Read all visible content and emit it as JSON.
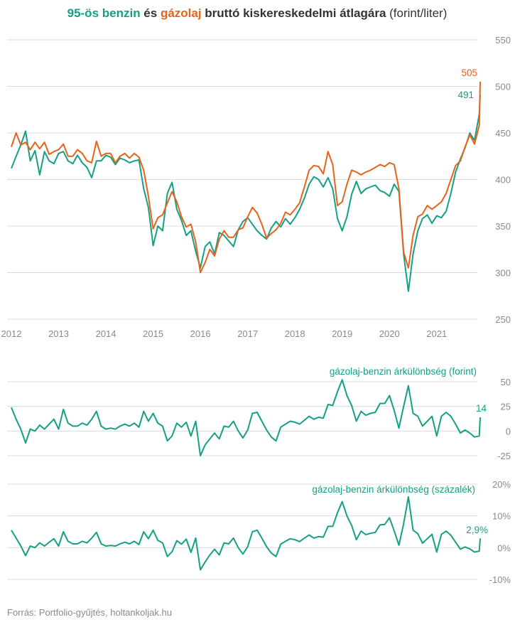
{
  "title": {
    "part1": "95-ös benzin",
    "part2": " és ",
    "part3": "gázolaj",
    "part4": " bruttó kiskereskedelmi átlagára",
    "part5": " (forint/liter)"
  },
  "source": "Forrás: Portfolio-gyűjtés, holtankoljak.hu",
  "colors": {
    "benzin": "#13a085",
    "gazolaj": "#e8621a",
    "grid": "#dcdcdc",
    "text": "#333333",
    "tick": "#8a8a8a"
  },
  "chart_data": [
    {
      "type": "line",
      "title": "95-ös benzin és gázolaj bruttó kiskereskedelmi átlagára (forint/liter)",
      "x_ticks": [
        "2012",
        "2013",
        "2014",
        "2015",
        "2016",
        "2017",
        "2018",
        "2019",
        "2020",
        "2021"
      ],
      "y_ticks": [
        "550",
        "500",
        "450",
        "400",
        "350",
        "300",
        "250"
      ],
      "ylim": [
        250,
        550
      ],
      "xlim": [
        2012.0,
        2021.92
      ],
      "grid": true,
      "end_labels": {
        "gazolaj": "505",
        "benzin": "491"
      },
      "series": [
        {
          "name": "95-ös benzin",
          "key": "benzin",
          "x": [
            2012.0,
            2012.1,
            2012.2,
            2012.3,
            2012.4,
            2012.5,
            2012.6,
            2012.7,
            2012.8,
            2012.9,
            2013.0,
            2013.1,
            2013.2,
            2013.3,
            2013.4,
            2013.5,
            2013.6,
            2013.7,
            2013.8,
            2013.9,
            2014.0,
            2014.1,
            2014.2,
            2014.3,
            2014.4,
            2014.5,
            2014.6,
            2014.7,
            2014.8,
            2014.9,
            2015.0,
            2015.1,
            2015.2,
            2015.3,
            2015.4,
            2015.5,
            2015.6,
            2015.7,
            2015.8,
            2015.9,
            2016.0,
            2016.1,
            2016.2,
            2016.3,
            2016.4,
            2016.5,
            2016.6,
            2016.7,
            2016.8,
            2016.9,
            2017.0,
            2017.1,
            2017.2,
            2017.3,
            2017.4,
            2017.5,
            2017.6,
            2017.7,
            2017.8,
            2017.9,
            2018.0,
            2018.1,
            2018.2,
            2018.3,
            2018.4,
            2018.5,
            2018.6,
            2018.7,
            2018.8,
            2018.9,
            2019.0,
            2019.1,
            2019.2,
            2019.3,
            2019.4,
            2019.5,
            2019.6,
            2019.7,
            2019.8,
            2019.9,
            2020.0,
            2020.1,
            2020.2,
            2020.3,
            2020.4,
            2020.5,
            2020.6,
            2020.7,
            2020.8,
            2020.9,
            2021.0,
            2021.1,
            2021.2,
            2021.3,
            2021.4,
            2021.5,
            2021.6,
            2021.7,
            2021.8,
            2021.9,
            2021.92
          ],
          "values": [
            412,
            425,
            437,
            452,
            420,
            431,
            405,
            430,
            420,
            417,
            428,
            430,
            420,
            417,
            426,
            418,
            413,
            402,
            420,
            420,
            426,
            424,
            416,
            423,
            421,
            418,
            420,
            421,
            390,
            370,
            329,
            350,
            345,
            385,
            397,
            368,
            356,
            340,
            345,
            323,
            305,
            328,
            333,
            320,
            343,
            340,
            334,
            328,
            346,
            355,
            359,
            352,
            345,
            340,
            336,
            348,
            355,
            349,
            358,
            352,
            359,
            368,
            380,
            395,
            403,
            400,
            392,
            402,
            390,
            358,
            345,
            360,
            384,
            398,
            385,
            390,
            392,
            394,
            388,
            386,
            382,
            395,
            387,
            320,
            280,
            320,
            345,
            358,
            362,
            353,
            361,
            359,
            366,
            385,
            408,
            422,
            434,
            450,
            442,
            470,
            491
          ]
        },
        {
          "name": "gázolaj",
          "key": "gazolaj",
          "x": [
            2012.0,
            2012.1,
            2012.2,
            2012.3,
            2012.4,
            2012.5,
            2012.6,
            2012.7,
            2012.8,
            2012.9,
            2013.0,
            2013.1,
            2013.2,
            2013.3,
            2013.4,
            2013.5,
            2013.6,
            2013.7,
            2013.8,
            2013.9,
            2014.0,
            2014.1,
            2014.2,
            2014.3,
            2014.4,
            2014.5,
            2014.6,
            2014.7,
            2014.8,
            2014.9,
            2015.0,
            2015.1,
            2015.2,
            2015.3,
            2015.4,
            2015.5,
            2015.6,
            2015.7,
            2015.8,
            2015.9,
            2016.0,
            2016.1,
            2016.2,
            2016.3,
            2016.4,
            2016.5,
            2016.6,
            2016.7,
            2016.8,
            2016.9,
            2017.0,
            2017.1,
            2017.2,
            2017.3,
            2017.4,
            2017.5,
            2017.6,
            2017.7,
            2017.8,
            2017.9,
            2018.0,
            2018.1,
            2018.2,
            2018.3,
            2018.4,
            2018.5,
            2018.6,
            2018.7,
            2018.8,
            2018.9,
            2019.0,
            2019.1,
            2019.2,
            2019.3,
            2019.4,
            2019.5,
            2019.6,
            2019.7,
            2019.8,
            2019.9,
            2020.0,
            2020.1,
            2020.2,
            2020.3,
            2020.4,
            2020.5,
            2020.6,
            2020.7,
            2020.8,
            2020.9,
            2021.0,
            2021.1,
            2021.2,
            2021.3,
            2021.4,
            2021.5,
            2021.6,
            2021.7,
            2021.8,
            2021.9,
            2021.92
          ],
          "values": [
            435,
            450,
            437,
            440,
            432,
            440,
            433,
            440,
            427,
            430,
            432,
            438,
            425,
            425,
            432,
            428,
            420,
            418,
            441,
            425,
            428,
            428,
            418,
            425,
            428,
            423,
            428,
            424,
            410,
            382,
            347,
            359,
            362,
            375,
            387,
            376,
            360,
            349,
            352,
            333,
            300,
            311,
            325,
            318,
            336,
            345,
            338,
            338,
            346,
            348,
            360,
            370,
            364,
            352,
            337,
            342,
            346,
            353,
            365,
            362,
            368,
            375,
            392,
            410,
            415,
            414,
            406,
            430,
            416,
            372,
            376,
            395,
            410,
            408,
            405,
            408,
            410,
            413,
            416,
            414,
            418,
            416,
            390,
            322,
            305,
            340,
            360,
            363,
            372,
            368,
            372,
            376,
            385,
            400,
            415,
            420,
            435,
            448,
            438,
            458,
            505
          ]
        }
      ]
    },
    {
      "type": "line",
      "title": "gázolaj-benzin árkülönbség (forint)",
      "y_ticks": [
        "50",
        "25",
        "0",
        "-25"
      ],
      "ylim": [
        -25,
        50
      ],
      "grid": true,
      "end_label": "14",
      "series": [
        {
          "key": "diff_forint",
          "x": [
            2012.0,
            2012.1,
            2012.2,
            2012.3,
            2012.4,
            2012.5,
            2012.6,
            2012.7,
            2012.8,
            2012.9,
            2013.0,
            2013.1,
            2013.2,
            2013.3,
            2013.4,
            2013.5,
            2013.6,
            2013.7,
            2013.8,
            2013.9,
            2014.0,
            2014.1,
            2014.2,
            2014.3,
            2014.4,
            2014.5,
            2014.6,
            2014.7,
            2014.8,
            2014.9,
            2015.0,
            2015.1,
            2015.2,
            2015.3,
            2015.4,
            2015.5,
            2015.6,
            2015.7,
            2015.8,
            2015.9,
            2016.0,
            2016.1,
            2016.2,
            2016.3,
            2016.4,
            2016.5,
            2016.6,
            2016.7,
            2016.8,
            2016.9,
            2017.0,
            2017.1,
            2017.2,
            2017.3,
            2017.4,
            2017.5,
            2017.6,
            2017.7,
            2017.8,
            2017.9,
            2018.0,
            2018.1,
            2018.2,
            2018.3,
            2018.4,
            2018.5,
            2018.6,
            2018.7,
            2018.8,
            2018.9,
            2019.0,
            2019.1,
            2019.2,
            2019.3,
            2019.4,
            2019.5,
            2019.6,
            2019.7,
            2019.8,
            2019.9,
            2020.0,
            2020.1,
            2020.2,
            2020.3,
            2020.4,
            2020.5,
            2020.6,
            2020.7,
            2020.8,
            2020.9,
            2021.0,
            2021.1,
            2021.2,
            2021.3,
            2021.4,
            2021.5,
            2021.6,
            2021.7,
            2021.8,
            2021.9,
            2021.92
          ],
          "values": [
            24,
            12,
            2,
            -12,
            2,
            0,
            6,
            2,
            7,
            12,
            2,
            22,
            8,
            5,
            5,
            8,
            6,
            12,
            20,
            5,
            2,
            3,
            2,
            5,
            7,
            5,
            8,
            4,
            20,
            10,
            18,
            8,
            5,
            -10,
            -5,
            8,
            4,
            9,
            -5,
            10,
            -25,
            -14,
            -8,
            -2,
            -8,
            5,
            4,
            10,
            0,
            -7,
            1,
            18,
            19,
            10,
            1,
            -6,
            -10,
            4,
            7,
            10,
            9,
            7,
            11,
            15,
            12,
            14,
            13,
            27,
            26,
            40,
            52,
            36,
            26,
            10,
            20,
            16,
            18,
            19,
            28,
            28,
            36,
            21,
            3,
            25,
            46,
            18,
            15,
            5,
            10,
            15,
            -5,
            15,
            19,
            15,
            7,
            -2,
            1,
            -2,
            -6,
            -5,
            14
          ]
        }
      ]
    },
    {
      "type": "line",
      "title": "gázolaj-benzin árkülönbség (százalék)",
      "y_ticks": [
        "20%",
        "10%",
        "0%",
        "-10%"
      ],
      "ylim": [
        -10,
        20
      ],
      "grid": true,
      "end_label": "2,9%",
      "series": [
        {
          "key": "diff_szazalek",
          "x": [
            2012.0,
            2012.1,
            2012.2,
            2012.3,
            2012.4,
            2012.5,
            2012.6,
            2012.7,
            2012.8,
            2012.9,
            2013.0,
            2013.1,
            2013.2,
            2013.3,
            2013.4,
            2013.5,
            2013.6,
            2013.7,
            2013.8,
            2013.9,
            2014.0,
            2014.1,
            2014.2,
            2014.3,
            2014.4,
            2014.5,
            2014.6,
            2014.7,
            2014.8,
            2014.9,
            2015.0,
            2015.1,
            2015.2,
            2015.3,
            2015.4,
            2015.5,
            2015.6,
            2015.7,
            2015.8,
            2015.9,
            2016.0,
            2016.1,
            2016.2,
            2016.3,
            2016.4,
            2016.5,
            2016.6,
            2016.7,
            2016.8,
            2016.9,
            2017.0,
            2017.1,
            2017.2,
            2017.3,
            2017.4,
            2017.5,
            2017.6,
            2017.7,
            2017.8,
            2017.9,
            2018.0,
            2018.1,
            2018.2,
            2018.3,
            2018.4,
            2018.5,
            2018.6,
            2018.7,
            2018.8,
            2018.9,
            2019.0,
            2019.1,
            2019.2,
            2019.3,
            2019.4,
            2019.5,
            2019.6,
            2019.7,
            2019.8,
            2019.9,
            2020.0,
            2020.1,
            2020.2,
            2020.3,
            2020.4,
            2020.5,
            2020.6,
            2020.7,
            2020.8,
            2020.9,
            2021.0,
            2021.1,
            2021.2,
            2021.3,
            2021.4,
            2021.5,
            2021.6,
            2021.7,
            2021.8,
            2021.9,
            2021.92
          ],
          "values": [
            5.5,
            3,
            0.5,
            -2.5,
            0.5,
            0,
            1.5,
            0.5,
            1.7,
            2.8,
            0.5,
            5,
            2,
            1.2,
            1.2,
            2,
            1.5,
            3,
            4.8,
            1.2,
            0.5,
            0.7,
            0.5,
            1.2,
            1.7,
            1.2,
            2,
            1,
            5,
            2.8,
            5.5,
            2.3,
            1.5,
            -2.8,
            -1.3,
            2.2,
            1.1,
            2.7,
            -1.5,
            3,
            -7,
            -4.5,
            -2.3,
            -0.5,
            -2.3,
            1.5,
            1.2,
            3,
            0,
            -2,
            0.3,
            5,
            5.5,
            3,
            0.3,
            -1.7,
            -2.8,
            1.1,
            2,
            2.8,
            2.5,
            1.9,
            3,
            4,
            3,
            3.5,
            3.3,
            6.7,
            6.7,
            11,
            14.5,
            10,
            7,
            2.5,
            5.2,
            4.1,
            4.5,
            4.8,
            7.2,
            7.3,
            9.4,
            5.3,
            0.8,
            7.5,
            16,
            5.5,
            4.4,
            1.4,
            2.8,
            4.2,
            -1.4,
            4.2,
            5.2,
            3.9,
            1.7,
            -0.5,
            0.2,
            -0.4,
            -1.4,
            -1.1,
            2.9
          ]
        }
      ]
    }
  ]
}
